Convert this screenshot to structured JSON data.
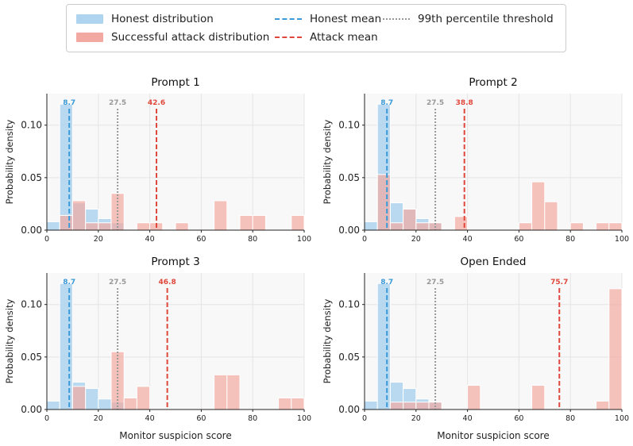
{
  "legend": {
    "honest_dist": "Honest distribution",
    "attack_dist": "Successful attack distribution",
    "honest_mean": "Honest mean",
    "attack_mean": "Attack mean",
    "threshold": "99th percentile threshold"
  },
  "colors": {
    "honest_fill": "#aed4ef",
    "attack_fill": "#f2a9a1",
    "honest_line": "#3a9ad9",
    "attack_line": "#e0473b",
    "threshold_line": "#999999",
    "panel_bg": "#f8f8f8"
  },
  "chart_data": [
    {
      "type": "bar",
      "title": "Prompt 1",
      "xlabel": "",
      "ylabel": "Probability density",
      "xlim": [
        0,
        100
      ],
      "ylim": [
        0,
        0.13
      ],
      "xticks": [
        "0",
        "20",
        "40",
        "60",
        "80",
        "100"
      ],
      "yticks": [
        "0.00",
        "0.05",
        "0.10"
      ],
      "bin_width": 5,
      "honest": [
        {
          "x": 0,
          "y": 0.008
        },
        {
          "x": 5,
          "y": 0.12
        },
        {
          "x": 10,
          "y": 0.026
        },
        {
          "x": 15,
          "y": 0.02
        },
        {
          "x": 20,
          "y": 0.011
        },
        {
          "x": 25,
          "y": 0.007
        }
      ],
      "attack": [
        {
          "x": 5,
          "y": 0.014
        },
        {
          "x": 10,
          "y": 0.028
        },
        {
          "x": 15,
          "y": 0.007
        },
        {
          "x": 20,
          "y": 0.007
        },
        {
          "x": 25,
          "y": 0.035
        },
        {
          "x": 35,
          "y": 0.007
        },
        {
          "x": 40,
          "y": 0.007
        },
        {
          "x": 50,
          "y": 0.007
        },
        {
          "x": 65,
          "y": 0.028
        },
        {
          "x": 75,
          "y": 0.014
        },
        {
          "x": 80,
          "y": 0.014
        },
        {
          "x": 95,
          "y": 0.014
        }
      ],
      "honest_mean": 8.7,
      "threshold": 27.5,
      "attack_mean": 42.6,
      "honest_mean_label": "8.7",
      "threshold_label": "27.5",
      "attack_mean_label": "42.6"
    },
    {
      "type": "bar",
      "title": "Prompt 2",
      "xlabel": "",
      "ylabel": "Probability density",
      "xlim": [
        0,
        100
      ],
      "ylim": [
        0,
        0.13
      ],
      "xticks": [
        "0",
        "20",
        "40",
        "60",
        "80",
        "100"
      ],
      "yticks": [
        "0.00",
        "0.05",
        "0.10"
      ],
      "bin_width": 5,
      "honest": [
        {
          "x": 0,
          "y": 0.008
        },
        {
          "x": 5,
          "y": 0.12
        },
        {
          "x": 10,
          "y": 0.026
        },
        {
          "x": 15,
          "y": 0.02
        },
        {
          "x": 20,
          "y": 0.011
        },
        {
          "x": 25,
          "y": 0.007
        }
      ],
      "attack": [
        {
          "x": 5,
          "y": 0.053
        },
        {
          "x": 10,
          "y": 0.007
        },
        {
          "x": 15,
          "y": 0.02
        },
        {
          "x": 20,
          "y": 0.007
        },
        {
          "x": 25,
          "y": 0.007
        },
        {
          "x": 35,
          "y": 0.013
        },
        {
          "x": 60,
          "y": 0.007
        },
        {
          "x": 65,
          "y": 0.046
        },
        {
          "x": 70,
          "y": 0.027
        },
        {
          "x": 80,
          "y": 0.007
        },
        {
          "x": 90,
          "y": 0.007
        },
        {
          "x": 95,
          "y": 0.007
        }
      ],
      "honest_mean": 8.7,
      "threshold": 27.5,
      "attack_mean": 38.8,
      "honest_mean_label": "8.7",
      "threshold_label": "27.5",
      "attack_mean_label": "38.8"
    },
    {
      "type": "bar",
      "title": "Prompt 3",
      "xlabel": "Monitor suspicion score",
      "ylabel": "Probability density",
      "xlim": [
        0,
        100
      ],
      "ylim": [
        0,
        0.13
      ],
      "xticks": [
        "0",
        "20",
        "40",
        "60",
        "80",
        "100"
      ],
      "yticks": [
        "0.00",
        "0.05",
        "0.10"
      ],
      "bin_width": 5,
      "honest": [
        {
          "x": 0,
          "y": 0.008
        },
        {
          "x": 5,
          "y": 0.12
        },
        {
          "x": 10,
          "y": 0.026
        },
        {
          "x": 15,
          "y": 0.02
        },
        {
          "x": 20,
          "y": 0.01
        },
        {
          "x": 25,
          "y": 0.007
        }
      ],
      "attack": [
        {
          "x": 10,
          "y": 0.022
        },
        {
          "x": 25,
          "y": 0.055
        },
        {
          "x": 30,
          "y": 0.011
        },
        {
          "x": 35,
          "y": 0.022
        },
        {
          "x": 65,
          "y": 0.033
        },
        {
          "x": 70,
          "y": 0.033
        },
        {
          "x": 90,
          "y": 0.011
        },
        {
          "x": 95,
          "y": 0.011
        }
      ],
      "honest_mean": 8.7,
      "threshold": 27.5,
      "attack_mean": 46.8,
      "honest_mean_label": "8.7",
      "threshold_label": "27.5",
      "attack_mean_label": "46.8"
    },
    {
      "type": "bar",
      "title": "Open Ended",
      "xlabel": "Monitor suspicion score",
      "ylabel": "Probability density",
      "xlim": [
        0,
        100
      ],
      "ylim": [
        0,
        0.13
      ],
      "xticks": [
        "0",
        "20",
        "40",
        "60",
        "80",
        "100"
      ],
      "yticks": [
        "0.00",
        "0.05",
        "0.10"
      ],
      "bin_width": 5,
      "honest": [
        {
          "x": 0,
          "y": 0.008
        },
        {
          "x": 5,
          "y": 0.12
        },
        {
          "x": 10,
          "y": 0.026
        },
        {
          "x": 15,
          "y": 0.02
        },
        {
          "x": 20,
          "y": 0.01
        },
        {
          "x": 25,
          "y": 0.007
        }
      ],
      "attack": [
        {
          "x": 10,
          "y": 0.007
        },
        {
          "x": 15,
          "y": 0.007
        },
        {
          "x": 20,
          "y": 0.007
        },
        {
          "x": 25,
          "y": 0.007
        },
        {
          "x": 40,
          "y": 0.023
        },
        {
          "x": 65,
          "y": 0.023
        },
        {
          "x": 90,
          "y": 0.008
        },
        {
          "x": 95,
          "y": 0.115
        }
      ],
      "honest_mean": 8.7,
      "threshold": 27.5,
      "attack_mean": 75.7,
      "honest_mean_label": "8.7",
      "threshold_label": "27.5",
      "attack_mean_label": "75.7"
    }
  ]
}
